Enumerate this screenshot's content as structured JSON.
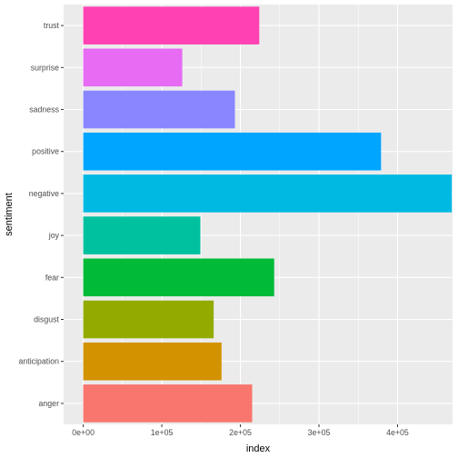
{
  "chart_data": {
    "type": "bar",
    "orientation": "horizontal",
    "xlabel": "index",
    "ylabel": "sentiment",
    "xlim": [
      -25000,
      470000
    ],
    "x_ticks": [
      0,
      100000,
      200000,
      300000,
      400000
    ],
    "x_tick_labels": [
      "0e+00",
      "1e+05",
      "2e+05",
      "3e+05",
      "4e+05"
    ],
    "categories": [
      "anger",
      "anticipation",
      "disgust",
      "fear",
      "joy",
      "negative",
      "positive",
      "sadness",
      "surprise",
      "trust"
    ],
    "values": [
      215000,
      176000,
      166000,
      243000,
      149000,
      469000,
      379000,
      193000,
      126000,
      224000
    ],
    "colors": [
      "#F8766D",
      "#D39200",
      "#93AA00",
      "#00BA38",
      "#00C19F",
      "#00B9E3",
      "#00A5FF",
      "#8986FF",
      "#E76BF3",
      "#FF42B3"
    ],
    "panel_background": "#EBEBEB",
    "grid": true,
    "legend": "none"
  }
}
